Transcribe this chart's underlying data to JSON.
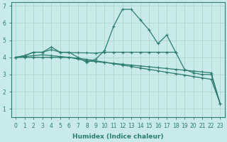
{
  "xlabel": "Humidex (Indice chaleur)",
  "bg_color": "#c8eae8",
  "line_color": "#2d7d70",
  "grid_color": "#b0d4d0",
  "x": [
    0,
    1,
    2,
    3,
    4,
    5,
    6,
    7,
    8,
    9,
    10,
    11,
    12,
    13,
    14,
    15,
    16,
    17,
    18,
    19,
    20,
    21,
    22,
    23
  ],
  "series1": [
    4.0,
    4.1,
    4.3,
    4.3,
    4.6,
    4.3,
    4.3,
    4.0,
    3.7,
    3.9,
    4.4,
    5.8,
    6.8,
    6.8,
    6.2,
    5.6,
    4.8,
    5.3,
    4.3,
    3.3,
    3.1,
    3.0,
    3.0,
    1.3
  ],
  "series2": [
    4.0,
    4.1,
    4.3,
    4.3,
    4.45,
    4.3,
    4.28,
    4.27,
    4.26,
    4.25,
    4.3,
    4.3,
    4.3,
    4.3,
    4.3,
    4.3,
    4.3,
    4.3,
    4.3
  ],
  "series3": [
    4.0,
    4.05,
    4.1,
    4.15,
    4.1,
    4.05,
    4.0,
    3.9,
    3.8,
    3.75,
    3.7,
    3.65,
    3.6,
    3.55,
    3.5,
    3.45,
    3.4,
    3.35,
    3.3,
    3.25,
    3.2,
    3.15,
    3.1,
    1.3
  ],
  "series4": [
    4.0,
    4.0,
    4.0,
    4.0,
    4.0,
    4.0,
    4.0,
    3.95,
    3.88,
    3.8,
    3.72,
    3.63,
    3.55,
    3.47,
    3.38,
    3.3,
    3.22,
    3.13,
    3.05,
    2.97,
    2.88,
    2.8,
    2.72,
    1.3
  ],
  "series2_x": [
    0,
    1,
    2,
    3,
    4,
    5,
    6,
    7,
    8,
    9,
    10,
    11,
    12,
    13,
    14,
    15,
    16,
    17,
    18
  ],
  "ylim": [
    0.5,
    7.2
  ],
  "xlim": [
    -0.5,
    23.5
  ],
  "yticks": [
    1,
    2,
    3,
    4,
    5,
    6,
    7
  ],
  "xticks": [
    0,
    1,
    2,
    3,
    4,
    5,
    6,
    7,
    8,
    9,
    10,
    11,
    12,
    13,
    14,
    15,
    16,
    17,
    18,
    19,
    20,
    21,
    22,
    23
  ]
}
